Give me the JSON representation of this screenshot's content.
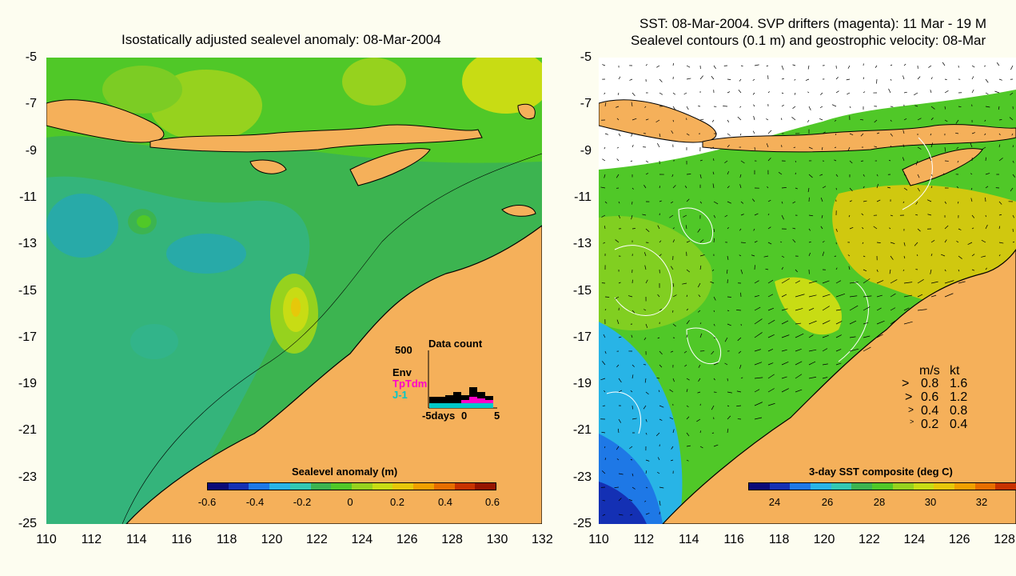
{
  "left": {
    "title": "Isostatically adjusted sealevel anomaly: 08-Mar-2004",
    "colorbar_title": "Sealevel anomaly (m)",
    "colorbar_labels": [
      "-0.6",
      "-0.4",
      "-0.2",
      "0",
      "0.2",
      "0.4",
      "0.6"
    ],
    "colorbar_colors": [
      "#0a0a78",
      "#1430b4",
      "#1e78e6",
      "#28b4e6",
      "#32c8b4",
      "#3cb450",
      "#50c828",
      "#96d21e",
      "#c8dc14",
      "#e6c80a",
      "#f0a000",
      "#e66e00",
      "#c83200",
      "#961400"
    ],
    "inset": {
      "title": "Data count",
      "y_max_label": "500",
      "x_labels": [
        "-5days",
        "0",
        "5"
      ],
      "legend": [
        "Env",
        "TpTdm",
        "J-1"
      ],
      "legend_colors": [
        "#000000",
        "#ff00c8",
        "#00c8c8"
      ]
    }
  },
  "right": {
    "title_line1": "SST: 08-Mar-2004. SVP drifters (magenta): 11 Mar - 19 M",
    "title_line2": "Sealevel contours (0.1 m) and geostrophic velocity: 08-Mar",
    "colorbar_title": "3-day SST composite (deg C)",
    "colorbar_labels": [
      "24",
      "26",
      "28",
      "30",
      "32"
    ],
    "colorbar_colors": [
      "#0a0a78",
      "#1430b4",
      "#1e78e6",
      "#28b4e6",
      "#32c8b4",
      "#3cb450",
      "#50c828",
      "#96d21e",
      "#c8dc14",
      "#e6c80a",
      "#f0a000",
      "#e66e00",
      "#c83200"
    ],
    "speed_legend": {
      "header_ms": "m/s",
      "header_kt": "kt",
      "rows": [
        {
          "ms": "0.8",
          "kt": "1.6"
        },
        {
          "ms": "0.6",
          "kt": "1.2"
        },
        {
          "ms": "0.4",
          "kt": "0.8"
        },
        {
          "ms": "0.2",
          "kt": "0.4"
        }
      ]
    }
  },
  "y_axis_labels": [
    "-5",
    "-7",
    "-9",
    "-11",
    "-13",
    "-15",
    "-17",
    "-19",
    "-21",
    "-23",
    "-25"
  ],
  "x_axis_left": [
    "110",
    "112",
    "114",
    "116",
    "118",
    "120",
    "122",
    "124",
    "126",
    "128",
    "130",
    "132"
  ],
  "x_axis_right": [
    "110",
    "112",
    "114",
    "116",
    "118",
    "120",
    "122",
    "124",
    "126",
    "128"
  ],
  "colors": {
    "land": "#f5b05a",
    "ocean_green": "#50c828",
    "background": "#fdfdf0"
  }
}
